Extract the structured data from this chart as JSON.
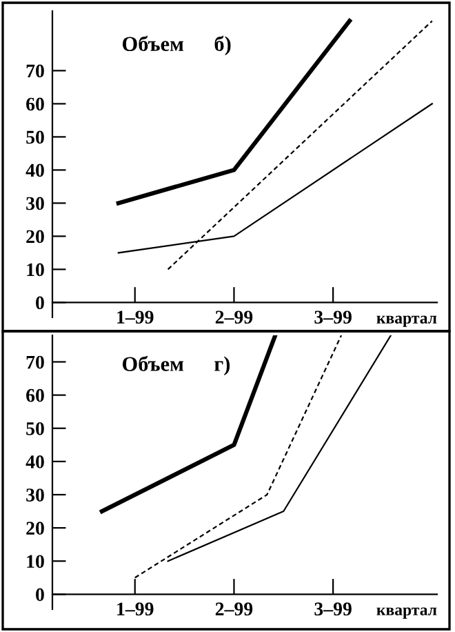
{
  "chart_data": [
    {
      "type": "line",
      "title": "б)",
      "ylabel": "Объем",
      "xlabel": "квартал",
      "ylim": [
        -4.5,
        88
      ],
      "categories": [
        null,
        null,
        null,
        null,
        null,
        null,
        null,
        null,
        null,
        null,
        "1–99",
        null,
        null,
        null,
        null,
        null,
        null,
        null,
        null,
        null,
        null,
        null,
        "2–99",
        null,
        null,
        null,
        null,
        null,
        null,
        null,
        null,
        null,
        null,
        null,
        "3–99",
        null,
        null,
        null,
        null,
        null,
        null,
        null,
        null,
        null,
        null,
        null,
        null
      ],
      "yticks": [
        0,
        10,
        20,
        30,
        40,
        50,
        60,
        70
      ],
      "grid": false,
      "legend": false,
      "marker": "none",
      "series": [
        {
          "color": "#000000",
          "line_style": "solid",
          "values": [
            null,
            null,
            null,
            null,
            null,
            null,
            null,
            null,
            30,
            null,
            null,
            null,
            null,
            null,
            null,
            null,
            null,
            null,
            null,
            null,
            null,
            null,
            40,
            null,
            null,
            null,
            null,
            null,
            null,
            null,
            null,
            null,
            null,
            null,
            null,
            null,
            85,
            null,
            null,
            null,
            null,
            null,
            null,
            null,
            null,
            null,
            null
          ]
        },
        {
          "color": "#000000",
          "line_style": "dashed",
          "values": [
            null,
            null,
            null,
            null,
            null,
            null,
            null,
            null,
            null,
            null,
            null,
            null,
            null,
            null,
            10,
            null,
            null,
            null,
            null,
            null,
            null,
            null,
            null,
            null,
            null,
            null,
            null,
            null,
            null,
            null,
            null,
            null,
            null,
            null,
            null,
            null,
            null,
            null,
            null,
            null,
            null,
            null,
            null,
            null,
            null,
            null,
            85
          ]
        },
        {
          "color": "#000000",
          "line_style": "solid",
          "values": [
            null,
            null,
            null,
            null,
            null,
            null,
            null,
            null,
            15,
            null,
            null,
            null,
            null,
            null,
            null,
            null,
            null,
            null,
            null,
            null,
            null,
            null,
            20,
            null,
            null,
            null,
            null,
            null,
            null,
            null,
            null,
            null,
            null,
            null,
            null,
            null,
            null,
            null,
            null,
            null,
            null,
            null,
            null,
            null,
            null,
            null,
            60
          ]
        }
      ]
    },
    {
      "type": "line",
      "title": "г)",
      "ylabel": "Объем",
      "xlabel": "квартал",
      "ylim": [
        -4.5,
        78
      ],
      "categories": [
        null,
        null,
        null,
        null,
        null,
        null,
        null,
        null,
        null,
        null,
        "1–99",
        null,
        null,
        null,
        null,
        null,
        null,
        null,
        null,
        null,
        null,
        null,
        "2–99",
        null,
        null,
        null,
        null,
        null,
        null,
        null,
        null,
        null,
        null,
        null,
        "3–99",
        null,
        null,
        null,
        null,
        null,
        null,
        null,
        null,
        null,
        null,
        null,
        null
      ],
      "yticks": [
        0,
        10,
        20,
        30,
        40,
        50,
        60,
        70
      ],
      "grid": false,
      "legend": false,
      "marker": "none",
      "series": [
        {
          "color": "#000000",
          "line_style": "solid",
          "values": [
            null,
            null,
            null,
            null,
            null,
            null,
            25,
            null,
            null,
            null,
            null,
            null,
            null,
            null,
            null,
            null,
            null,
            null,
            null,
            null,
            null,
            null,
            45,
            null,
            null,
            null,
            null,
            78,
            null,
            null,
            null,
            null,
            null,
            null,
            null,
            null,
            null,
            null,
            null,
            null,
            null,
            null,
            null,
            null,
            null,
            null,
            null
          ]
        },
        {
          "color": "#000000",
          "line_style": "dashed",
          "values": [
            null,
            null,
            null,
            null,
            null,
            null,
            null,
            null,
            null,
            null,
            5,
            null,
            null,
            null,
            null,
            null,
            null,
            null,
            null,
            null,
            null,
            null,
            null,
            null,
            null,
            null,
            30,
            null,
            null,
            null,
            null,
            null,
            null,
            null,
            null,
            78,
            null,
            null,
            null,
            null,
            null,
            null,
            null,
            null,
            null,
            null,
            null
          ]
        },
        {
          "color": "#000000",
          "line_style": "solid",
          "values": [
            null,
            null,
            null,
            null,
            null,
            null,
            null,
            null,
            null,
            null,
            null,
            null,
            null,
            null,
            10,
            null,
            null,
            null,
            null,
            null,
            null,
            null,
            null,
            null,
            null,
            null,
            null,
            null,
            25,
            null,
            null,
            null,
            null,
            null,
            null,
            null,
            null,
            null,
            null,
            null,
            null,
            78,
            null,
            null,
            null,
            null,
            null
          ]
        }
      ]
    }
  ]
}
